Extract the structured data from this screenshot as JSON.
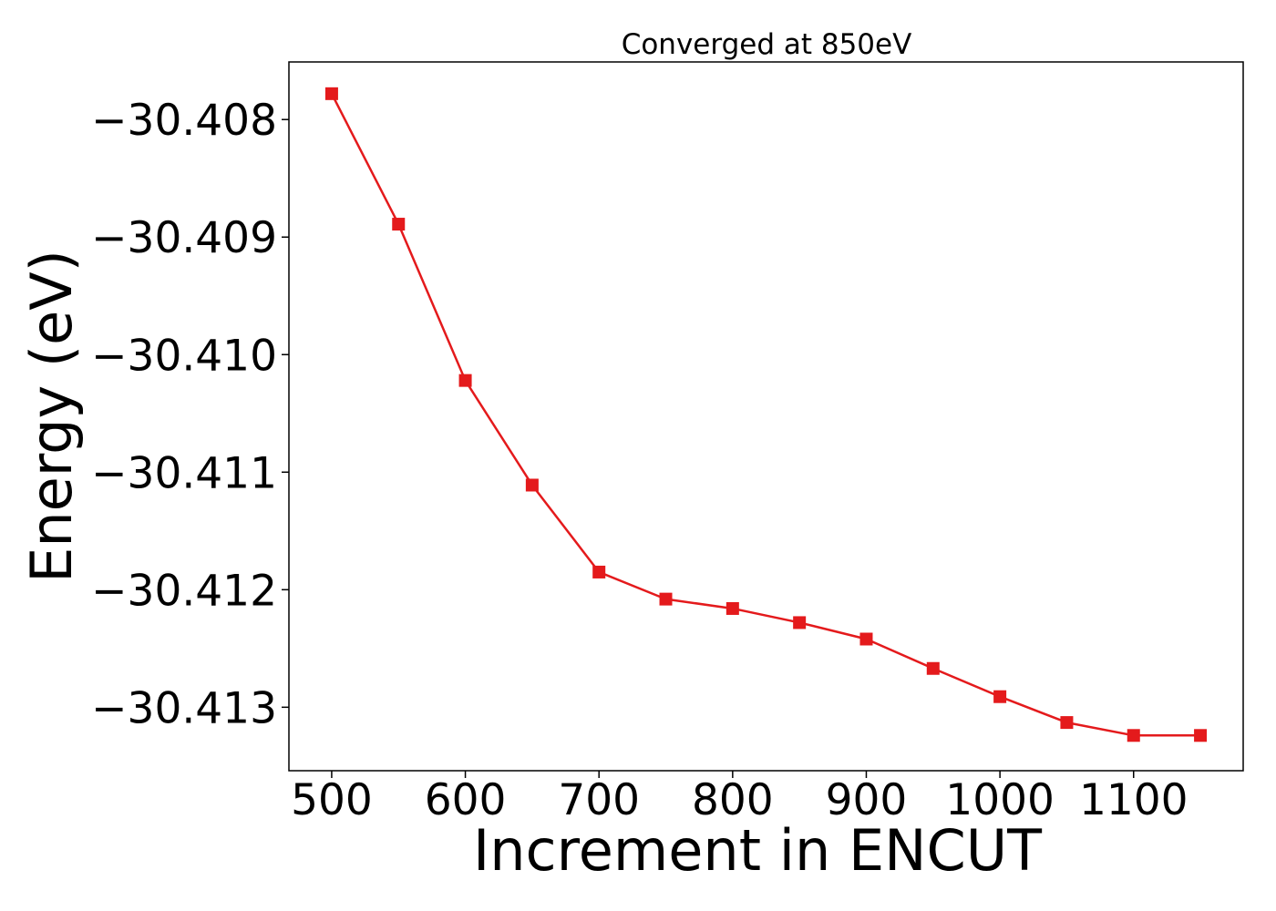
{
  "chart_data": {
    "type": "line",
    "title": "Converged at 850eV",
    "xlabel": "Increment in ENCUT",
    "ylabel": "Energy (eV)",
    "xlim": [
      468,
      1182
    ],
    "ylim": [
      -30.41354,
      -30.40751
    ],
    "x_ticks": [
      500,
      600,
      700,
      800,
      900,
      1000,
      1100
    ],
    "x_tick_labels": [
      "500",
      "600",
      "700",
      "800",
      "900",
      "1000",
      "1100"
    ],
    "y_ticks": [
      -30.408,
      -30.409,
      -30.41,
      -30.411,
      -30.412,
      -30.413
    ],
    "y_tick_labels": [
      "−30.408",
      "−30.409",
      "−30.410",
      "−30.411",
      "−30.412",
      "−30.413"
    ],
    "grid": false,
    "legend": "none",
    "series": [
      {
        "color": "#e41a1c",
        "marker": "square",
        "x": [
          500,
          550,
          600,
          650,
          700,
          750,
          800,
          850,
          900,
          950,
          1000,
          1050,
          1100,
          1150
        ],
        "y": [
          -30.40778,
          -30.40889,
          -30.41022,
          -30.41111,
          -30.41185,
          -30.41208,
          -30.41216,
          -30.41228,
          -30.41242,
          -30.41267,
          -30.41291,
          -30.41313,
          -30.41324,
          -30.41324
        ]
      }
    ]
  }
}
